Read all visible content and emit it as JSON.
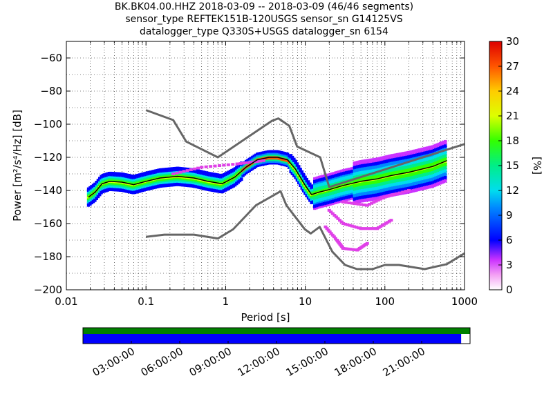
{
  "title": {
    "line1": "BK.BK04.00.HHZ   2018-03-09 -- 2018-03-09  (46/46 segments)",
    "line2": "sensor_type REFTEK151B-120USGS sensor_sn G14125VS",
    "line3": "datalogger_type Q330S+USGS datalogger_sn 6154"
  },
  "chart_data": [
    {
      "type": "heatmap",
      "xlabel": "Period [s]",
      "ylabel": "Power [m²/s⁴/Hz] [dB]",
      "x_scale": "log",
      "xlim": [
        0.01,
        1000
      ],
      "ylim": [
        -200,
        -50
      ],
      "x_ticks": [
        {
          "value": 0.01,
          "label": "0.01"
        },
        {
          "value": 0.1,
          "label": "0.1"
        },
        {
          "value": 1,
          "label": "1"
        },
        {
          "value": 10,
          "label": "10"
        },
        {
          "value": 100,
          "label": "100"
        },
        {
          "value": 1000,
          "label": "1000"
        }
      ],
      "y_ticks": [
        {
          "value": -60,
          "label": "−60"
        },
        {
          "value": -80,
          "label": "−80"
        },
        {
          "value": -100,
          "label": "−100"
        },
        {
          "value": -120,
          "label": "−120"
        },
        {
          "value": -140,
          "label": "−140"
        },
        {
          "value": -160,
          "label": "−160"
        },
        {
          "value": -180,
          "label": "−180"
        },
        {
          "value": -200,
          "label": "−200"
        }
      ],
      "grid": true,
      "series": [
        {
          "name": "",
          "color": "#666666",
          "points": [
            [
              0.1,
              -91.5
            ],
            [
              0.22,
              -97.5
            ],
            [
              0.32,
              -110.5
            ],
            [
              0.8,
              -120
            ],
            [
              3.8,
              -98
            ],
            [
              4.6,
              -96.5
            ],
            [
              6.3,
              -101
            ],
            [
              7.9,
              -113.5
            ],
            [
              15.4,
              -120
            ],
            [
              20,
              -138
            ],
            [
              1000,
              -112
            ]
          ]
        },
        {
          "name": "",
          "color": "#666666",
          "points": [
            [
              0.1,
              -168
            ],
            [
              0.17,
              -166.7
            ],
            [
              0.4,
              -166.7
            ],
            [
              0.8,
              -169
            ],
            [
              1.24,
              -163.5
            ],
            [
              2.4,
              -149
            ],
            [
              3.98,
              -143
            ],
            [
              4.9,
              -140.5
            ],
            [
              5.8,
              -149
            ],
            [
              9.9,
              -163.5
            ],
            [
              11.7,
              -166
            ],
            [
              15.2,
              -162
            ],
            [
              21.9,
              -177
            ],
            [
              31.6,
              -185
            ],
            [
              44.7,
              -187.5
            ],
            [
              70,
              -187.5
            ],
            [
              100,
              -185
            ],
            [
              150,
              -185
            ],
            [
              316,
              -187.5
            ],
            [
              600,
              -184.5
            ],
            [
              1000,
              -178
            ]
          ]
        },
        {
          "name": "",
          "color": "#000000",
          "points": [
            [
              0.019,
              -144
            ],
            [
              0.023,
              -141
            ],
            [
              0.028,
              -136
            ],
            [
              0.035,
              -134.5
            ],
            [
              0.05,
              -135
            ],
            [
              0.07,
              -136.5
            ],
            [
              0.1,
              -134.5
            ],
            [
              0.15,
              -132.5
            ],
            [
              0.25,
              -131.5
            ],
            [
              0.4,
              -132.5
            ],
            [
              0.6,
              -134.5
            ],
            [
              0.9,
              -136
            ],
            [
              1.3,
              -132
            ],
            [
              1.8,
              -126
            ],
            [
              2.5,
              -121.5
            ],
            [
              3.5,
              -120
            ],
            [
              4.5,
              -120
            ],
            [
              6,
              -121.5
            ],
            [
              7.5,
              -127
            ],
            [
              10,
              -137
            ],
            [
              12,
              -142.5
            ],
            [
              15,
              -141
            ],
            [
              20,
              -139.5
            ],
            [
              30,
              -137
            ],
            [
              50,
              -134.5
            ],
            [
              80,
              -133
            ],
            [
              120,
              -131
            ],
            [
              200,
              -129
            ],
            [
              400,
              -125.5
            ],
            [
              600,
              -122
            ]
          ]
        }
      ],
      "colorbar": {
        "label": "[%]",
        "range": [
          0,
          30
        ],
        "ticks": [
          0,
          3,
          6,
          9,
          12,
          15,
          18,
          21,
          24,
          27,
          30
        ]
      }
    },
    {
      "type": "bar",
      "title": "",
      "x_ticks": [
        "03:00:00",
        "06:00:00",
        "09:00:00",
        "12:00:00",
        "15:00:00",
        "18:00:00",
        "21:00:00"
      ],
      "coverage": [
        {
          "name": "",
          "color": "#008000",
          "fraction": 1.0
        },
        {
          "name": "",
          "color": "#0000ff",
          "fraction": 0.977
        }
      ]
    }
  ]
}
